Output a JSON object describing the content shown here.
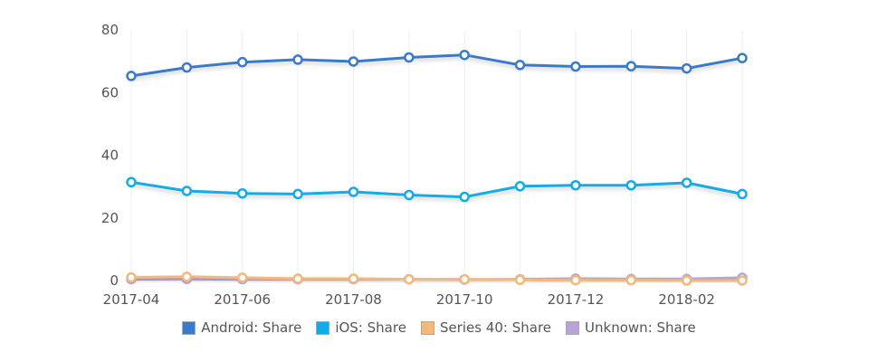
{
  "chart_data": {
    "type": "line",
    "x": [
      "2017-04",
      "2017-05",
      "2017-06",
      "2017-07",
      "2017-08",
      "2017-09",
      "2017-10",
      "2017-11",
      "2017-12",
      "2018-01",
      "2018-02",
      "2018-03"
    ],
    "x_tick_labels": [
      "2017-04",
      "2017-06",
      "2017-08",
      "2017-10",
      "2017-12",
      "2018-02"
    ],
    "y_ticks": [
      "0",
      "20",
      "40",
      "60",
      "80"
    ],
    "ylim": [
      0,
      80
    ],
    "grid": "vertical",
    "legend_position": "bottom",
    "series": [
      {
        "name": "Android: Share",
        "color": "#3a7ac8",
        "values": [
          65.3,
          68.0,
          69.7,
          70.5,
          69.9,
          71.2,
          72.0,
          68.8,
          68.3,
          68.4,
          67.7,
          71.0
        ]
      },
      {
        "name": "iOS: Share",
        "color": "#12abe6",
        "values": [
          31.4,
          28.6,
          27.8,
          27.6,
          28.3,
          27.3,
          26.7,
          30.1,
          30.4,
          30.4,
          31.2,
          27.6
        ]
      },
      {
        "name": "Series 40: Share",
        "color": "#f3b87c",
        "values": [
          1.0,
          1.2,
          0.9,
          0.6,
          0.6,
          0.4,
          0.4,
          0.2,
          0.1,
          0.1,
          0.0,
          0.0
        ]
      },
      {
        "name": "Unknown: Share",
        "color": "#b8a4d6",
        "values": [
          0.4,
          0.5,
          0.4,
          0.4,
          0.4,
          0.4,
          0.3,
          0.4,
          0.6,
          0.5,
          0.5,
          0.9
        ]
      }
    ]
  }
}
